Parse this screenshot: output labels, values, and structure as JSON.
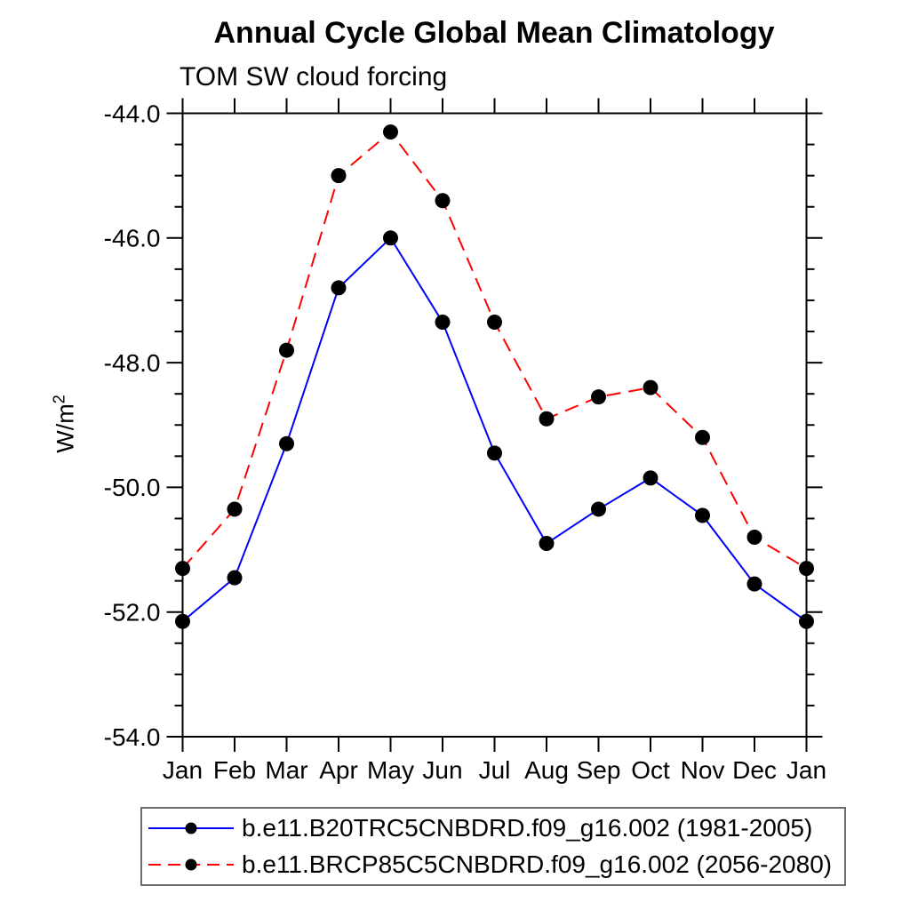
{
  "chart_data": {
    "type": "line",
    "title": "Annual Cycle Global Mean Climatology",
    "subtitle": "TOM SW cloud forcing",
    "ylabel": {
      "base": "W/m",
      "sup": "2"
    },
    "categories": [
      "Jan",
      "Feb",
      "Mar",
      "Apr",
      "May",
      "Jun",
      "Jul",
      "Aug",
      "Sep",
      "Oct",
      "Nov",
      "Dec",
      "Jan"
    ],
    "series": [
      {
        "name": "b.e11.B20TRC5CNBDRD.f09_g16.002 (1981-2005)",
        "color": "#0000ff",
        "line_style": "solid",
        "marker": "filled-circle",
        "marker_color": "#000000",
        "values": [
          -52.15,
          -51.45,
          -49.3,
          -46.8,
          -46.0,
          -47.35,
          -49.45,
          -50.9,
          -50.35,
          -49.85,
          -50.45,
          -51.55,
          -52.15
        ]
      },
      {
        "name": "b.e11.BRCP85C5CNBDRD.f09_g16.002 (2056-2080)",
        "color": "#ff0000",
        "line_style": "dashed",
        "marker": "filled-circle",
        "marker_color": "#000000",
        "values": [
          -51.3,
          -50.35,
          -47.8,
          -45.0,
          -44.3,
          -45.4,
          -47.35,
          -48.9,
          -48.55,
          -48.4,
          -49.2,
          -50.8,
          -51.3
        ]
      }
    ],
    "ylim": [
      -54.0,
      -44.0
    ],
    "yticks": [
      -44.0,
      -46.0,
      -48.0,
      -50.0,
      -52.0,
      -54.0
    ],
    "ytick_labels": [
      "-44.0",
      "-46.0",
      "-48.0",
      "-50.0",
      "-52.0",
      "-54.0"
    ],
    "yminor_step": 0.5,
    "grid": false,
    "legend_position": "bottom",
    "axis_color": "#000000",
    "text_color": "#000000"
  }
}
